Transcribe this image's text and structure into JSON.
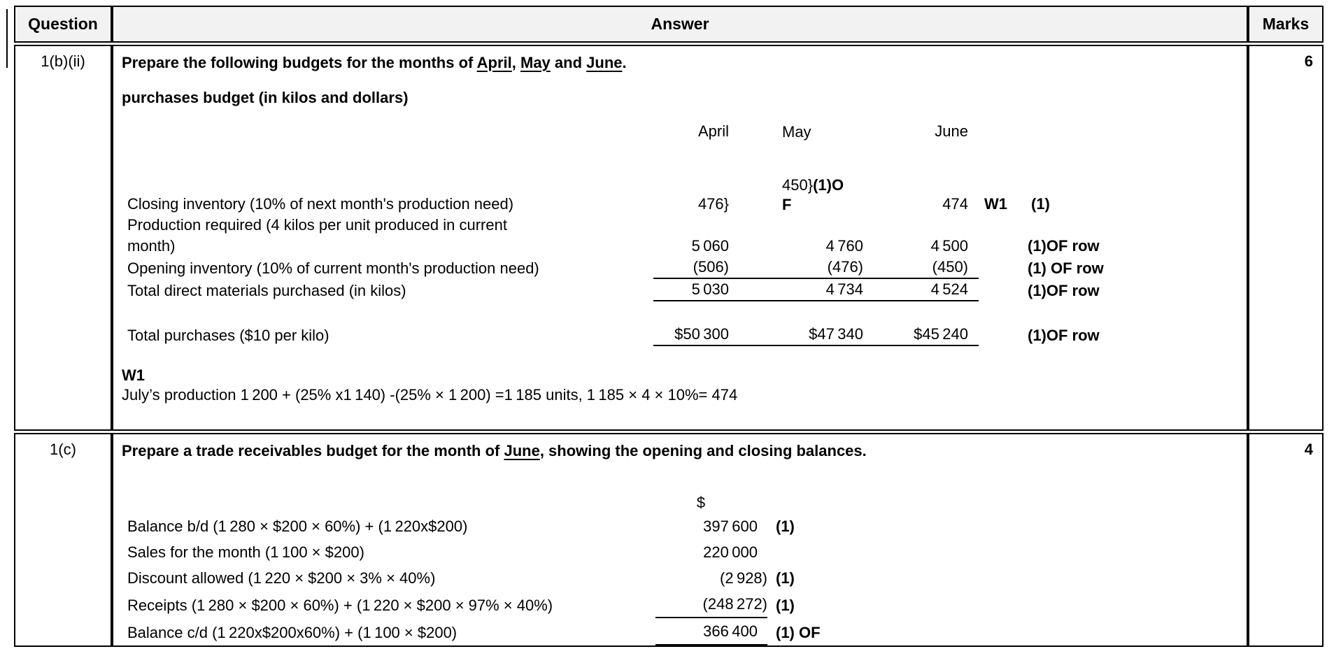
{
  "header": {
    "question": "Question",
    "answer": "Answer",
    "marks": "Marks"
  },
  "rows": [
    {
      "question": "1(b)(ii)",
      "marks": "6",
      "prompt_segments": [
        {
          "t": "Prepare the following budgets for the months of "
        },
        {
          "t": "April",
          "u": true
        },
        {
          "t": ", "
        },
        {
          "t": "May",
          "u": true
        },
        {
          "t": " and "
        },
        {
          "t": "June",
          "u": true
        },
        {
          "t": "."
        }
      ],
      "subtitle": "purchases budget (in kilos and dollars)",
      "months": {
        "april": "April",
        "may": "May",
        "june": "June"
      },
      "budget": {
        "closing": {
          "label": "Closing inventory (10% of next month's production need)",
          "april": "476}",
          "may_line1": "450}",
          "may_line1_note": "(1)O",
          "may_line2": "F",
          "june": "474",
          "note_w1": "W1",
          "note_mark": "(1)"
        },
        "production": {
          "label_lines": [
            "Production required (4 kilos per unit produced in current",
            "month)"
          ],
          "april": "5 060",
          "may": "4 760",
          "june": "4 500",
          "note": "(1)OF row"
        },
        "opening": {
          "label": "Opening inventory (10% of current month's production need)",
          "april": "(506)",
          "may": "(476)",
          "june": "(450)",
          "note": "(1) OF row"
        },
        "total_kilos": {
          "label": "Total direct materials purchased (in kilos)",
          "april": "5 030",
          "may": "4 734",
          "june": "4 524",
          "note": "(1)OF row"
        },
        "total_purchases": {
          "label": "Total purchases ($10 per kilo)",
          "april": "$50 300",
          "may": "$47 340",
          "june": "$45 240",
          "note": "(1)OF row"
        }
      },
      "working": {
        "title": "W1",
        "text": "July’s production 1 200 + (25% x1 140) -(25% × 1 200) =1 185 units, 1 185 × 4 × 10%= 474"
      }
    },
    {
      "question": "1(c)",
      "marks": "4",
      "prompt_segments": [
        {
          "t": "Prepare a trade receivables budget for the month of "
        },
        {
          "t": "June",
          "u": true
        },
        {
          "t": ", showing the opening and closing balances."
        }
      ],
      "currency_header": "$",
      "lines": [
        {
          "label": "Balance b/d (1 280 × $200 × 60%) + (1 220x$200)",
          "value": "397 600",
          "note": "(1)",
          "paren": false,
          "underline": false
        },
        {
          "label": "Sales for the month (1 100 × $200)",
          "value": "220 000",
          "note": "",
          "paren": false,
          "underline": false
        },
        {
          "label": "Discount allowed (1 220 × $200 × 3% × 40%)",
          "value": "(2 928)",
          "note": "(1)",
          "paren": true,
          "underline": false
        },
        {
          "label": "Receipts (1 280 × $200 × 60%) + (1 220 × $200 × 97% × 40%)",
          "value": "(248 272)",
          "note": "(1)",
          "paren": true,
          "underline": true
        },
        {
          "label": "Balance c/d (1 220x$200x60%) + (1 100 × $200)",
          "value": "366 400",
          "note": "(1) OF",
          "paren": false,
          "underline": true
        }
      ]
    }
  ]
}
